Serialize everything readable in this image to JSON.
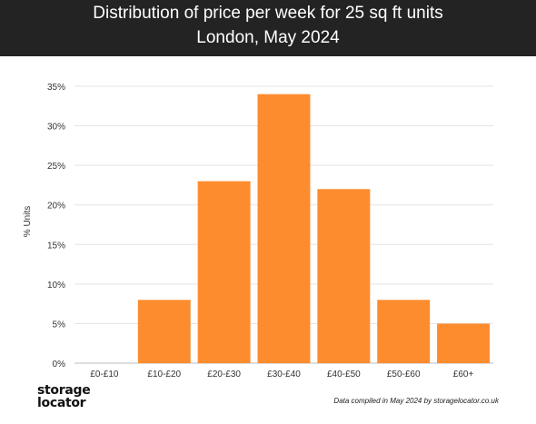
{
  "header": {
    "title_line1": "Distribution of price per week for 25 sq ft units",
    "title_line2": "London, May 2024"
  },
  "chart_data": {
    "type": "bar",
    "title": "Distribution of price per week for 25 sq ft units",
    "subtitle": "London, May 2024",
    "categories": [
      "£0-£10",
      "£10-£20",
      "£20-£30",
      "£30-£40",
      "£40-£50",
      "£50-£60",
      "£60+"
    ],
    "values": [
      0,
      8,
      23,
      34,
      22,
      8,
      5
    ],
    "xlabel": "",
    "ylabel": "% Units",
    "ylim": [
      0,
      35
    ],
    "yticks": [
      "0%",
      "5%",
      "10%",
      "15%",
      "20%",
      "25%",
      "30%",
      "35%"
    ],
    "grid": true,
    "bar_color": "#fd8c2e"
  },
  "footer": {
    "logo_line1": "storage",
    "logo_line2": "locator",
    "credit": "Data compiled in May 2024 by storagelocator.co.uk"
  },
  "colors": {
    "header_bg": "#232323",
    "bar": "#fd8c2e",
    "grid": "#e3e3e3"
  }
}
